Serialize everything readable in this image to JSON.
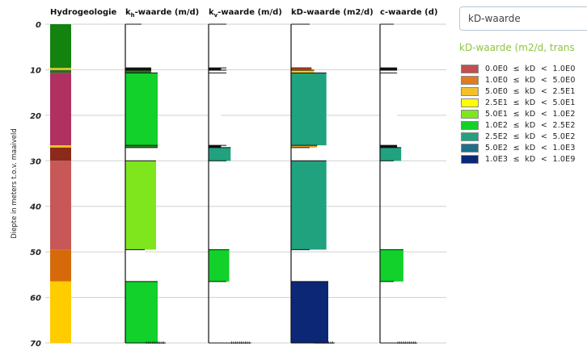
{
  "chart_data": {
    "type": "bar",
    "ylabel": "Diepte in meters t.o.v. maaiveld",
    "ylim": [
      0,
      70
    ],
    "yticks": [
      0,
      10,
      20,
      30,
      40,
      50,
      60,
      70
    ],
    "grid": true,
    "columns": [
      {
        "key": "hydrogeologie",
        "title_main": "Hydrogeologie",
        "title_sub": "",
        "title_tail": "",
        "type": "hydro",
        "layers": [
          {
            "top": 0,
            "bottom": 9.6,
            "color": "#13820f"
          },
          {
            "top": 9.6,
            "bottom": 10.1,
            "color": "#d9c21e"
          },
          {
            "top": 10.1,
            "bottom": 10.7,
            "color": "#1f6e2a"
          },
          {
            "top": 10.7,
            "bottom": 26.6,
            "color": "#b0305f"
          },
          {
            "top": 26.6,
            "bottom": 27.1,
            "color": "#e4c41a"
          },
          {
            "top": 27.1,
            "bottom": 30.0,
            "color": "#8b2a18"
          },
          {
            "top": 30.0,
            "bottom": 49.5,
            "color": "#c85858"
          },
          {
            "top": 49.5,
            "bottom": 56.5,
            "color": "#d66a0a"
          },
          {
            "top": 56.5,
            "bottom": 70,
            "color": "#ffcc00"
          }
        ]
      },
      {
        "key": "kh",
        "title_main": "k",
        "title_sub": "h",
        "title_tail": "-waarde (m/d)",
        "type": "value",
        "layers": [
          {
            "top": 0,
            "bottom": 9.6,
            "width": 0.0,
            "color": "#ffffff"
          },
          {
            "top": 9.6,
            "bottom": 10.1,
            "width": 0.8,
            "color": "#111111"
          },
          {
            "top": 10.1,
            "bottom": 10.7,
            "width": 0.8,
            "color": "#1f7a1f"
          },
          {
            "top": 10.7,
            "bottom": 26.6,
            "width": 1.0,
            "color": "#11d12a"
          },
          {
            "top": 26.6,
            "bottom": 27.1,
            "width": 1.0,
            "color": "#2b8f2b"
          },
          {
            "top": 27.1,
            "bottom": 30.0,
            "width": 1.0,
            "color": "#ffffff"
          },
          {
            "top": 30.0,
            "bottom": 49.5,
            "width": 0.95,
            "color": "#7fe61e"
          },
          {
            "top": 49.5,
            "bottom": 56.5,
            "width": 0.6,
            "color": "#ffffff"
          },
          {
            "top": 56.5,
            "bottom": 70,
            "width": 1.0,
            "color": "#11d12a"
          }
        ]
      },
      {
        "key": "kv",
        "title_main": "k",
        "title_sub": "v",
        "title_tail": "-waarde (m/d)",
        "type": "value",
        "layers": [
          {
            "top": 0,
            "bottom": 9.6,
            "width": 0.0,
            "color": "#ffffff"
          },
          {
            "top": 9.6,
            "bottom": 10.1,
            "width": 0.35,
            "color": "#111111"
          },
          {
            "top": 10.1,
            "bottom": 10.7,
            "width": 0.35,
            "color": "#ffffff"
          },
          {
            "top": 10.7,
            "bottom": 26.6,
            "width": 0.35,
            "color": "#ffffff"
          },
          {
            "top": 26.6,
            "bottom": 27.1,
            "width": 0.35,
            "color": "#111111"
          },
          {
            "top": 27.1,
            "bottom": 30.0,
            "width": 0.62,
            "color": "#21a27f"
          },
          {
            "top": 30.0,
            "bottom": 49.5,
            "width": 0.0,
            "color": "#ffffff"
          },
          {
            "top": 49.5,
            "bottom": 56.5,
            "width": 0.58,
            "color": "#11d12a"
          },
          {
            "top": 56.5,
            "bottom": 70,
            "width": 0.0,
            "color": "#ffffff"
          }
        ]
      },
      {
        "key": "kd",
        "title_main": "kD-waarde (m2/d)",
        "title_sub": "",
        "title_tail": "",
        "type": "value",
        "layers": [
          {
            "top": 0,
            "bottom": 9.6,
            "width": 0.0,
            "color": "#ffffff"
          },
          {
            "top": 9.6,
            "bottom": 10.1,
            "width": 0.55,
            "color": "#d84f2a"
          },
          {
            "top": 10.1,
            "bottom": 10.7,
            "width": 0.62,
            "color": "#ffd21a"
          },
          {
            "top": 10.7,
            "bottom": 26.6,
            "width": 0.95,
            "color": "#21a27f"
          },
          {
            "top": 26.6,
            "bottom": 27.1,
            "width": 0.7,
            "color": "#e8a62a"
          },
          {
            "top": 27.1,
            "bottom": 30.0,
            "width": 0.0,
            "color": "#ffffff"
          },
          {
            "top": 30.0,
            "bottom": 49.5,
            "width": 0.95,
            "color": "#21a27f"
          },
          {
            "top": 49.5,
            "bottom": 56.5,
            "width": 0.0,
            "color": "#ffffff"
          },
          {
            "top": 56.5,
            "bottom": 70,
            "width": 1.0,
            "color": "#0b2776"
          }
        ]
      },
      {
        "key": "c",
        "title_main": "c-waarde (d)",
        "title_sub": "",
        "title_tail": "",
        "type": "value",
        "layers": [
          {
            "top": 0,
            "bottom": 9.6,
            "width": 0.0,
            "color": "#ffffff"
          },
          {
            "top": 9.6,
            "bottom": 10.1,
            "width": 0.62,
            "color": "#111111"
          },
          {
            "top": 10.1,
            "bottom": 10.7,
            "width": 0.62,
            "color": "#ffffff"
          },
          {
            "top": 10.7,
            "bottom": 26.6,
            "width": 0.62,
            "color": "#ffffff"
          },
          {
            "top": 26.6,
            "bottom": 27.1,
            "width": 0.62,
            "color": "#111111"
          },
          {
            "top": 27.1,
            "bottom": 30.0,
            "width": 0.77,
            "color": "#21a27f"
          },
          {
            "top": 30.0,
            "bottom": 49.5,
            "width": 0.0,
            "color": "#ffffff"
          },
          {
            "top": 49.5,
            "bottom": 56.5,
            "width": 0.85,
            "color": "#11d12a"
          },
          {
            "top": 56.5,
            "bottom": 70,
            "width": 0.0,
            "color": "#ffffff"
          }
        ]
      }
    ]
  },
  "controls": {
    "select_value": "kD-waarde"
  },
  "legend": {
    "title": "kD-waarde (m2/d, trans",
    "items": [
      {
        "label": "0.0E0  ≤  kD  <  1.0E0",
        "color": "#c0504d"
      },
      {
        "label": "1.0E0  ≤  kD  <  5.0E0",
        "color": "#e07b1f"
      },
      {
        "label": "5.0E0  ≤  kD  <  2.5E1",
        "color": "#f2c028"
      },
      {
        "label": "2.5E1  ≤  kD  <  5.0E1",
        "color": "#ffff00"
      },
      {
        "label": "5.0E1  ≤  kD  <  1.0E2",
        "color": "#7fe61e"
      },
      {
        "label": "1.0E2  ≤  kD  <  2.5E2",
        "color": "#11d12a"
      },
      {
        "label": "2.5E2  ≤  kD  <  5.0E2",
        "color": "#21a27f"
      },
      {
        "label": "5.0E2  ≤  kD  <  1.0E3",
        "color": "#1f6f8b"
      },
      {
        "label": "1.0E3  ≤  kD  <  1.0E9",
        "color": "#0b2776"
      }
    ]
  }
}
